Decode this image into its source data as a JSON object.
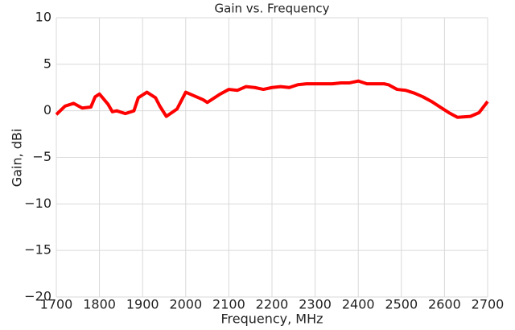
{
  "chart_data": {
    "type": "line",
    "title": "Gain vs. Frequency",
    "x_label": "Frequency, MHz",
    "y_label": "Gain, dBi",
    "x": [
      1700,
      1720,
      1740,
      1760,
      1780,
      1790,
      1800,
      1820,
      1830,
      1840,
      1860,
      1880,
      1890,
      1910,
      1930,
      1940,
      1955,
      1980,
      2000,
      2020,
      2040,
      2050,
      2080,
      2100,
      2120,
      2140,
      2160,
      2180,
      2200,
      2220,
      2240,
      2260,
      2280,
      2300,
      2320,
      2340,
      2360,
      2380,
      2400,
      2420,
      2440,
      2460,
      2470,
      2490,
      2510,
      2530,
      2550,
      2570,
      2590,
      2610,
      2630,
      2660,
      2680,
      2700
    ],
    "series": [
      {
        "name": "Gain",
        "color": "#ff0000",
        "values": [
          -0.4,
          0.5,
          0.8,
          0.3,
          0.4,
          1.5,
          1.8,
          0.7,
          -0.1,
          0,
          -0.3,
          0,
          1.4,
          2.0,
          1.4,
          0.5,
          -0.6,
          0.2,
          2.0,
          1.6,
          1.2,
          0.9,
          1.8,
          2.3,
          2.2,
          2.6,
          2.5,
          2.3,
          2.5,
          2.6,
          2.5,
          2.8,
          2.9,
          2.9,
          2.9,
          2.9,
          3.0,
          3.0,
          3.2,
          2.9,
          2.9,
          2.9,
          2.8,
          2.3,
          2.2,
          1.9,
          1.5,
          1.0,
          0.4,
          -0.2,
          -0.7,
          -0.6,
          -0.2,
          1.0
        ]
      }
    ],
    "xlim": [
      1700,
      2700
    ],
    "xticks": [
      1700,
      1800,
      1900,
      2000,
      2100,
      2200,
      2300,
      2400,
      2500,
      2600,
      2700
    ],
    "ylim": [
      -20,
      10
    ],
    "yticks": [
      {
        "value": -20,
        "label": "−20"
      },
      {
        "value": -15,
        "label": "−15"
      },
      {
        "value": -10,
        "label": "−10"
      },
      {
        "value": -5,
        "label": "−5"
      },
      0,
      5,
      10
    ],
    "grid": true
  }
}
